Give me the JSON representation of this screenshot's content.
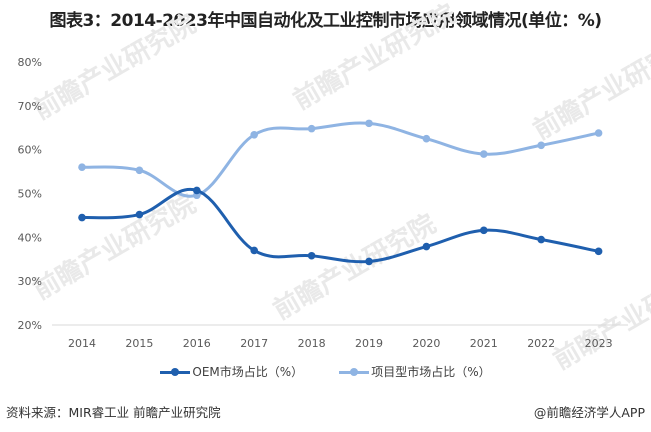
{
  "title": "图表3：2014-2023年中国自动化及工业控制市场应用领域情况(单位：%)",
  "chart_data": {
    "type": "line",
    "title": "图表3：2014-2023年中国自动化及工业控制市场应用领域情况(单位：%)",
    "xlabel": "",
    "ylabel": "",
    "categories": [
      "2014",
      "2015",
      "2016",
      "2017",
      "2018",
      "2019",
      "2020",
      "2021",
      "2022",
      "2023"
    ],
    "series": [
      {
        "name": "OEM市场占比（%）",
        "color": "#1f5fae",
        "values": [
          44.5,
          45.2,
          50.7,
          37.0,
          35.8,
          34.5,
          37.9,
          41.6,
          39.5,
          36.8
        ]
      },
      {
        "name": "项目型市场占比（%）",
        "color": "#8fb4e3",
        "values": [
          56.0,
          55.3,
          49.6,
          63.4,
          64.8,
          66.0,
          62.5,
          59.0,
          61.0,
          63.8
        ]
      }
    ],
    "yticks": [
      "20%",
      "30%",
      "40%",
      "50%",
      "60%",
      "70%",
      "80%"
    ],
    "ylim": [
      20,
      80
    ],
    "grid": false,
    "legend_position": "bottom",
    "smooth": true
  },
  "legend": [
    {
      "label": "OEM市场占比（%）",
      "color": "#1f5fae"
    },
    {
      "label": "项目型市场占比（%）",
      "color": "#8fb4e3"
    }
  ],
  "footer": {
    "source": "资料来源：MIR睿工业 前瞻产业研究院",
    "brand": "@前瞻经济学人APP"
  },
  "watermark": "前瞻产业研究院"
}
